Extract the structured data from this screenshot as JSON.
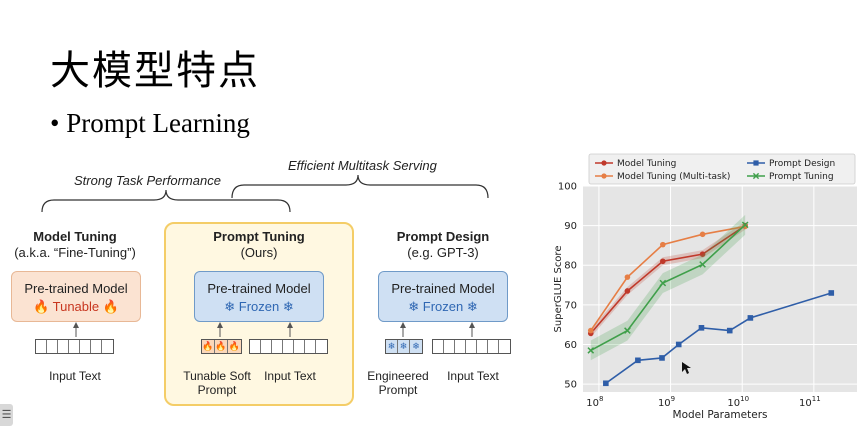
{
  "slide": {
    "title": "大模型特点",
    "bullet": "• Prompt Learning"
  },
  "diagram": {
    "brace_strong": "Strong Task Performance",
    "brace_efficient": "Efficient Multitask Serving",
    "panels": {
      "model_tuning": {
        "title": "Model Tuning",
        "subtitle": "(a.k.a. “Fine-Tuning”)",
        "box_line1": "Pre-trained Model",
        "box_line2": "🔥 Tunable 🔥",
        "input": "Input Text"
      },
      "prompt_tuning": {
        "title": "Prompt Tuning",
        "subtitle": "(Ours)",
        "box_line1": "Pre-trained Model",
        "box_line2": "❄ Frozen ❄",
        "prompt_caption_1": "Tunable Soft",
        "prompt_caption_2": "Prompt",
        "input": "Input Text"
      },
      "prompt_design": {
        "title": "Prompt Design",
        "subtitle": "(e.g. GPT-3)",
        "box_line1": "Pre-trained Model",
        "box_line2": "❄ Frozen ❄",
        "prompt_caption_1": "Engineered",
        "prompt_caption_2": "Prompt",
        "input": "Input Text"
      }
    }
  },
  "chart_data": {
    "type": "line",
    "title": "",
    "xlabel": "Model Parameters",
    "ylabel": "SuperGLUE Score",
    "x_scale": "log",
    "xlim": [
      60000000.0,
      400000000000.0
    ],
    "ylim": [
      48,
      100
    ],
    "x_ticks": [
      {
        "value": 100000000.0,
        "base": "10",
        "exp": "8"
      },
      {
        "value": 1000000000.0,
        "base": "10",
        "exp": "9"
      },
      {
        "value": 10000000000.0,
        "base": "10",
        "exp": "10"
      },
      {
        "value": 100000000000.0,
        "base": "10",
        "exp": "11"
      }
    ],
    "y_ticks": [
      50,
      60,
      70,
      80,
      90,
      100
    ],
    "grid": true,
    "legend": "top",
    "series": [
      {
        "name": "Model Tuning",
        "color": "#c0392b",
        "marker": "circle",
        "x": [
          77000000.0,
          250000000.0,
          780000000.0,
          2800000000.0,
          11000000000.0
        ],
        "y": [
          62.8,
          73.5,
          81.0,
          82.8,
          90.0
        ],
        "band": 1.0
      },
      {
        "name": "Model Tuning (Multi-task)",
        "color": "#e67e45",
        "marker": "circle",
        "x": [
          77000000.0,
          250000000.0,
          780000000.0,
          2800000000.0,
          11000000000.0
        ],
        "y": [
          63.5,
          77.0,
          85.2,
          87.8,
          89.8
        ],
        "band": 0
      },
      {
        "name": "Prompt Design",
        "color": "#2f5ea8",
        "marker": "square",
        "x": [
          125000000.0,
          350000000.0,
          760000000.0,
          1300000000.0,
          2700000000.0,
          6700000000.0,
          13000000000.0,
          175000000000.0
        ],
        "y": [
          50.2,
          56.0,
          56.6,
          60.0,
          64.2,
          63.5,
          66.7,
          73.0
        ],
        "band": 0
      },
      {
        "name": "Prompt Tuning",
        "color": "#3f9f4a",
        "marker": "x",
        "x": [
          77000000.0,
          250000000.0,
          780000000.0,
          2800000000.0,
          11000000000.0
        ],
        "y": [
          58.5,
          63.5,
          75.5,
          80.2,
          90.2
        ],
        "band": 2.5
      }
    ]
  }
}
